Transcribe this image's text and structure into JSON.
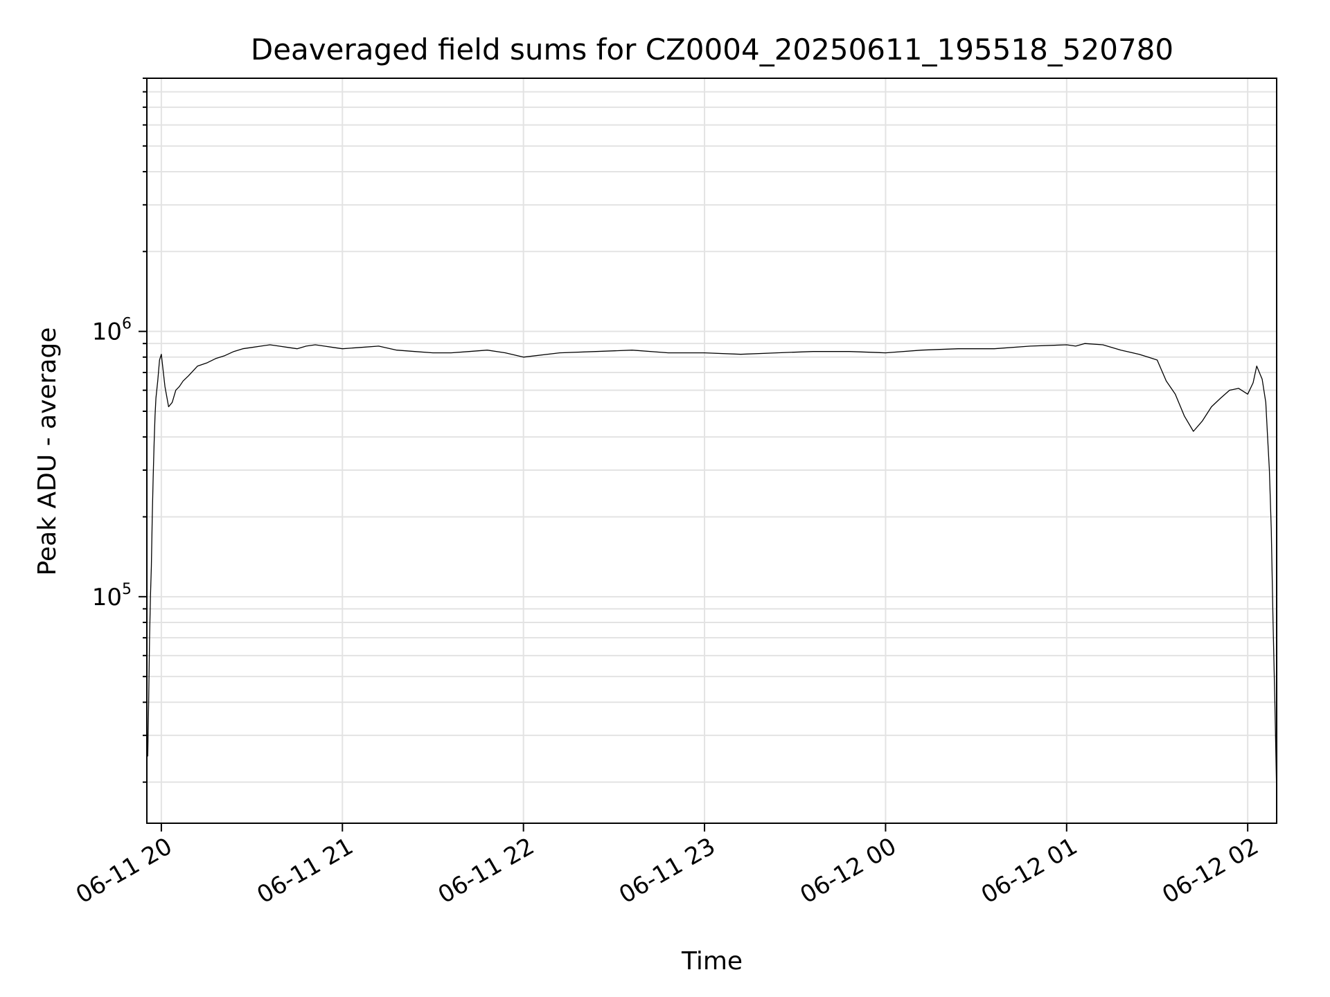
{
  "chart_data": {
    "type": "line",
    "title": "Deaveraged field sums for CZ0004_20250611_195518_520780",
    "xlabel": "Time",
    "ylabel": "Peak ADU - average",
    "yscale": "log",
    "ylim": [
      14000,
      9000000
    ],
    "xlim_hours": [
      -0.08,
      6.16
    ],
    "grid": true,
    "x_ticks": [
      {
        "hours": 0,
        "label": "06-11 20"
      },
      {
        "hours": 1,
        "label": "06-11 21"
      },
      {
        "hours": 2,
        "label": "06-11 22"
      },
      {
        "hours": 3,
        "label": "06-11 23"
      },
      {
        "hours": 4,
        "label": "06-12 00"
      },
      {
        "hours": 5,
        "label": "06-12 01"
      },
      {
        "hours": 6,
        "label": "06-12 02"
      }
    ],
    "y_ticks": [
      {
        "value": 100000,
        "base": "10",
        "exponent": "5"
      },
      {
        "value": 1000000,
        "base": "10",
        "exponent": "6"
      }
    ],
    "series": [
      {
        "name": "field sums",
        "x_hours": [
          -0.075,
          -0.07,
          -0.065,
          -0.06,
          -0.055,
          -0.05,
          -0.045,
          -0.04,
          -0.035,
          -0.03,
          -0.02,
          -0.01,
          0.0,
          0.02,
          0.04,
          0.06,
          0.08,
          0.1,
          0.12,
          0.15,
          0.2,
          0.25,
          0.3,
          0.35,
          0.4,
          0.45,
          0.5,
          0.55,
          0.6,
          0.65,
          0.7,
          0.75,
          0.8,
          0.85,
          0.9,
          0.95,
          1.0,
          1.1,
          1.2,
          1.3,
          1.4,
          1.5,
          1.6,
          1.7,
          1.8,
          1.9,
          2.0,
          2.2,
          2.4,
          2.6,
          2.8,
          3.0,
          3.2,
          3.4,
          3.6,
          3.8,
          4.0,
          4.2,
          4.4,
          4.6,
          4.8,
          5.0,
          5.05,
          5.1,
          5.2,
          5.3,
          5.4,
          5.45,
          5.5,
          5.55,
          5.6,
          5.65,
          5.7,
          5.75,
          5.8,
          5.85,
          5.9,
          5.95,
          6.0,
          6.03,
          6.05,
          6.08,
          6.1,
          6.11,
          6.12,
          6.13,
          6.14,
          6.15,
          6.16
        ],
        "values": [
          25000,
          40000,
          70000,
          100000,
          130000,
          200000,
          280000,
          380000,
          480000,
          560000,
          650000,
          780000,
          820000,
          620000,
          520000,
          540000,
          600000,
          620000,
          650000,
          680000,
          740000,
          760000,
          790000,
          810000,
          840000,
          860000,
          870000,
          880000,
          890000,
          880000,
          870000,
          860000,
          880000,
          890000,
          880000,
          870000,
          860000,
          870000,
          880000,
          850000,
          840000,
          830000,
          830000,
          840000,
          850000,
          830000,
          800000,
          830000,
          840000,
          850000,
          830000,
          830000,
          820000,
          830000,
          840000,
          840000,
          830000,
          850000,
          860000,
          860000,
          880000,
          890000,
          880000,
          900000,
          890000,
          850000,
          820000,
          800000,
          780000,
          650000,
          580000,
          480000,
          420000,
          460000,
          520000,
          560000,
          600000,
          610000,
          580000,
          640000,
          740000,
          660000,
          540000,
          400000,
          300000,
          180000,
          80000,
          40000,
          18000
        ]
      }
    ]
  }
}
